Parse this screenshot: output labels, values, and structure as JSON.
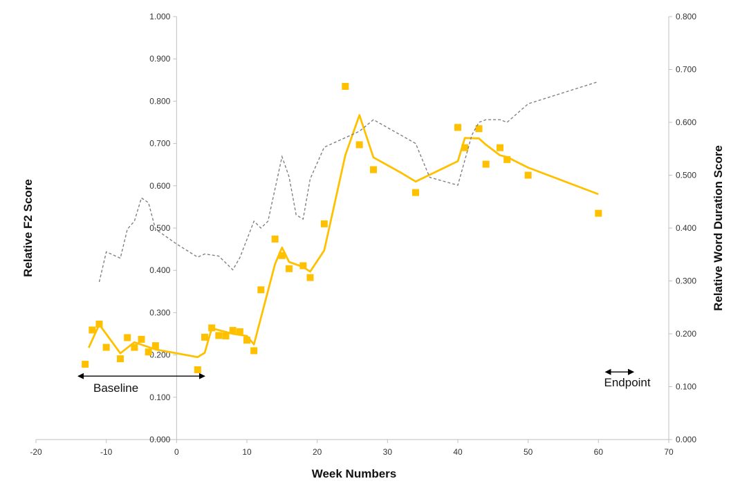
{
  "chart_data": {
    "type": "scatter",
    "xlabel": "Week Numbers",
    "ylabel": "Relative F2 Score",
    "y2label": "Relative Word Duration Score",
    "xlim": [
      -20,
      70
    ],
    "ylim": [
      0,
      1.0
    ],
    "y2lim": [
      0,
      0.8
    ],
    "x_ticks": [
      "-20",
      "-10",
      "0",
      "10",
      "20",
      "30",
      "40",
      "50",
      "60",
      "70"
    ],
    "y_ticks": [
      "0.000",
      "0.100",
      "0.200",
      "0.300",
      "0.400",
      "0.500",
      "0.600",
      "0.700",
      "0.800",
      "0.900",
      "1.000"
    ],
    "y2_ticks": [
      "0.000",
      "0.100",
      "0.200",
      "0.300",
      "0.400",
      "0.500",
      "0.600",
      "0.700",
      "0.800"
    ],
    "grid": false,
    "colors": {
      "f2": "#FFC000",
      "duration": "#808080",
      "axis": "#BFBFBF"
    },
    "annotations": {
      "baseline": "Baseline",
      "endpoint": "Endpoint"
    },
    "baseline_range": [
      -14,
      4
    ],
    "endpoint_range": [
      61,
      65
    ],
    "annotation_y": 0.15,
    "series": [
      {
        "axis": "left",
        "style": "markers",
        "points": [
          [
            -13,
            0.178
          ],
          [
            -12,
            0.259
          ],
          [
            -11,
            0.273
          ],
          [
            -10,
            0.218
          ],
          [
            -8,
            0.191
          ],
          [
            -7,
            0.241
          ],
          [
            -6,
            0.218
          ],
          [
            -5,
            0.237
          ],
          [
            -4,
            0.207
          ],
          [
            -3,
            0.222
          ],
          [
            3,
            0.165
          ],
          [
            4,
            0.242
          ],
          [
            5,
            0.264
          ],
          [
            6,
            0.246
          ],
          [
            7,
            0.245
          ],
          [
            8,
            0.258
          ],
          [
            9,
            0.255
          ],
          [
            10,
            0.235
          ],
          [
            11,
            0.21
          ],
          [
            12,
            0.354
          ],
          [
            14,
            0.474
          ],
          [
            15,
            0.435
          ],
          [
            16,
            0.404
          ],
          [
            18,
            0.411
          ],
          [
            19,
            0.383
          ],
          [
            21,
            0.51
          ],
          [
            24,
            0.835
          ],
          [
            26,
            0.697
          ],
          [
            28,
            0.638
          ],
          [
            34,
            0.584
          ],
          [
            40,
            0.738
          ],
          [
            41,
            0.69
          ],
          [
            43,
            0.735
          ],
          [
            44,
            0.651
          ],
          [
            46,
            0.69
          ],
          [
            47,
            0.662
          ],
          [
            50,
            0.625
          ],
          [
            60,
            0.535
          ]
        ]
      },
      {
        "axis": "left",
        "style": "solid-line",
        "points": [
          [
            -12.5,
            0.217
          ],
          [
            -11,
            0.272
          ],
          [
            -8,
            0.204
          ],
          [
            -6,
            0.23
          ],
          [
            -3,
            0.213
          ],
          [
            3,
            0.195
          ],
          [
            4,
            0.205
          ],
          [
            5,
            0.263
          ],
          [
            8,
            0.25
          ],
          [
            10,
            0.245
          ],
          [
            11,
            0.225
          ],
          [
            14,
            0.415
          ],
          [
            15,
            0.454
          ],
          [
            16,
            0.42
          ],
          [
            18,
            0.408
          ],
          [
            19,
            0.397
          ],
          [
            21,
            0.447
          ],
          [
            24,
            0.672
          ],
          [
            26,
            0.767
          ],
          [
            28,
            0.667
          ],
          [
            32,
            0.63
          ],
          [
            34,
            0.61
          ],
          [
            40,
            0.658
          ],
          [
            41,
            0.713
          ],
          [
            43,
            0.712
          ],
          [
            44,
            0.697
          ],
          [
            46,
            0.672
          ],
          [
            47,
            0.668
          ],
          [
            50,
            0.643
          ],
          [
            60,
            0.58
          ]
        ]
      },
      {
        "axis": "right",
        "style": "dashed-line",
        "points": [
          [
            -11,
            0.298
          ],
          [
            -10,
            0.355
          ],
          [
            -8,
            0.343
          ],
          [
            -7,
            0.398
          ],
          [
            -6,
            0.413
          ],
          [
            -5,
            0.457
          ],
          [
            -4,
            0.448
          ],
          [
            -3,
            0.398
          ],
          [
            0,
            0.37
          ],
          [
            3,
            0.345
          ],
          [
            4,
            0.351
          ],
          [
            6,
            0.347
          ],
          [
            8,
            0.321
          ],
          [
            9,
            0.344
          ],
          [
            11,
            0.413
          ],
          [
            12,
            0.4
          ],
          [
            13,
            0.413
          ],
          [
            15,
            0.535
          ],
          [
            16,
            0.497
          ],
          [
            17,
            0.425
          ],
          [
            18,
            0.417
          ],
          [
            19,
            0.493
          ],
          [
            21,
            0.553
          ],
          [
            26,
            0.583
          ],
          [
            28,
            0.605
          ],
          [
            34,
            0.56
          ],
          [
            36,
            0.496
          ],
          [
            40,
            0.481
          ],
          [
            42,
            0.576
          ],
          [
            43,
            0.6
          ],
          [
            44,
            0.605
          ],
          [
            46,
            0.605
          ],
          [
            47,
            0.6
          ],
          [
            50,
            0.635
          ],
          [
            60,
            0.677
          ]
        ]
      }
    ]
  }
}
